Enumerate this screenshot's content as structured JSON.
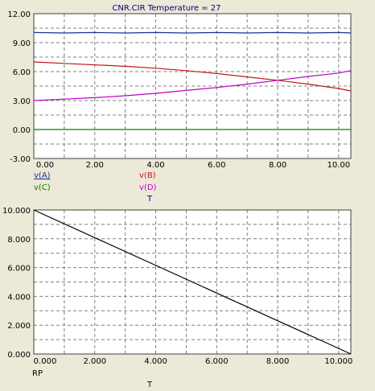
{
  "title": "CNR.CIR Temperature = 27",
  "colors": {
    "background": "#ece9d8",
    "plot_background": "#ffffff",
    "grid": "#808080",
    "vA": "#1c2f9c",
    "vB": "#c01818",
    "vC": "#008000",
    "vD": "#c000c0",
    "RP": "#000000",
    "text": "#000000",
    "title": "#000080"
  },
  "chart_data": [
    {
      "type": "line",
      "title": "CNR.CIR Temperature = 27",
      "xlabel": "T",
      "xlim": [
        0,
        10.4
      ],
      "ylim": [
        -3,
        12
      ],
      "grid": true,
      "x_tick_labels": [
        "0.00",
        "2.00",
        "4.00",
        "6.00",
        "8.00",
        "10.00"
      ],
      "x_ticks": [
        0,
        2,
        4,
        6,
        8,
        10
      ],
      "y_tick_labels": [
        "-3.00",
        "0.00",
        "3.00",
        "6.00",
        "9.00",
        "12.00"
      ],
      "y_ticks": [
        -3,
        0,
        3,
        6,
        9,
        12
      ],
      "legend_placement": "bottom-left",
      "series": [
        {
          "name": "v(A)",
          "x": [
            0,
            1,
            2,
            3,
            4,
            5,
            6,
            7,
            8,
            9,
            10,
            10.4
          ],
          "values": [
            10.05,
            10.0,
            10.05,
            10.0,
            10.05,
            10.0,
            10.05,
            10.0,
            10.05,
            10.0,
            10.05,
            10.0
          ]
        },
        {
          "name": "v(B)",
          "x": [
            0,
            1,
            2,
            3,
            4,
            5,
            6,
            7,
            8,
            9,
            10,
            10.4
          ],
          "values": [
            7.0,
            6.85,
            6.7,
            6.55,
            6.35,
            6.1,
            5.8,
            5.45,
            5.1,
            4.7,
            4.25,
            4.0
          ]
        },
        {
          "name": "v(C)",
          "x": [
            0,
            10.4
          ],
          "values": [
            0.0,
            0.0
          ]
        },
        {
          "name": "v(D)",
          "x": [
            0,
            1,
            2,
            3,
            4,
            5,
            6,
            7,
            8,
            9,
            10,
            10.4
          ],
          "values": [
            3.0,
            3.15,
            3.3,
            3.5,
            3.75,
            4.05,
            4.35,
            4.7,
            5.1,
            5.5,
            5.85,
            6.1
          ]
        }
      ]
    },
    {
      "type": "line",
      "xlabel": "T",
      "xlim": [
        0,
        10.4
      ],
      "ylim": [
        0,
        10
      ],
      "grid": true,
      "x_tick_labels": [
        "0.000",
        "2.000",
        "4.000",
        "6.000",
        "8.000",
        "10.000"
      ],
      "x_ticks": [
        0,
        2,
        4,
        6,
        8,
        10
      ],
      "y_tick_labels": [
        "0.000",
        "2.000",
        "4.000",
        "6.000",
        "8.000",
        "10.000"
      ],
      "y_ticks": [
        0,
        2,
        4,
        6,
        8,
        10
      ],
      "legend_placement": "bottom-left",
      "series": [
        {
          "name": "RP",
          "x": [
            0,
            10.4
          ],
          "values": [
            10.0,
            0.0
          ]
        }
      ]
    }
  ]
}
